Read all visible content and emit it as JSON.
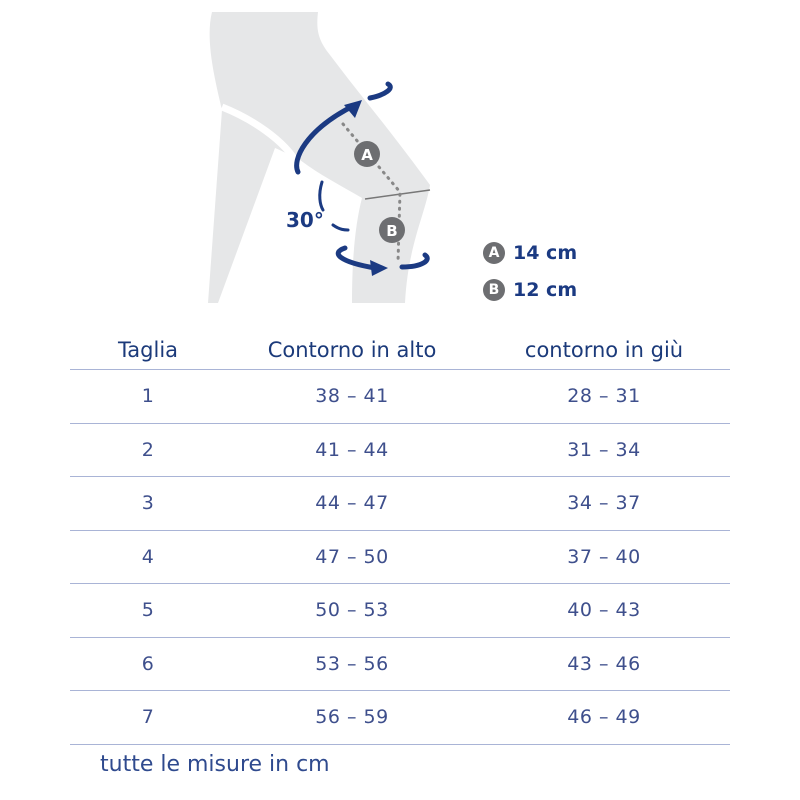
{
  "diagram": {
    "angle_label": "30°",
    "point_a": "A",
    "point_b": "B",
    "legend": [
      {
        "marker": "A",
        "value": "14 cm"
      },
      {
        "marker": "B",
        "value": "12 cm"
      }
    ],
    "colors": {
      "accent": "#1b3a82",
      "leg": "#e6e7e8",
      "badge": "#6d6e71"
    }
  },
  "table": {
    "headers": [
      "Taglia",
      "Contorno in alto",
      "contorno in giù"
    ],
    "rows": [
      [
        "1",
        "38 – 41",
        "28 – 31"
      ],
      [
        "2",
        "41 – 44",
        "31 – 34"
      ],
      [
        "3",
        "44 – 47",
        "34 – 37"
      ],
      [
        "4",
        "47 – 50",
        "37 – 40"
      ],
      [
        "5",
        "50 – 53",
        "40 – 43"
      ],
      [
        "6",
        "53 – 56",
        "43 – 46"
      ],
      [
        "7",
        "56 – 59",
        "46 – 49"
      ]
    ]
  },
  "footer": "tutte le misure in cm"
}
